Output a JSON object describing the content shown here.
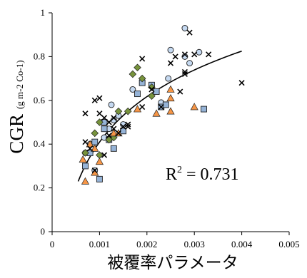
{
  "chart_data": {
    "type": "scatter",
    "title": "",
    "xlabel": "被覆率パラメータ",
    "ylabel_main": "CGR",
    "ylabel_unit": "(g m-2 Co-1)",
    "xlim": [
      0,
      0.005
    ],
    "ylim": [
      0,
      1
    ],
    "xticks": [
      0,
      0.001,
      0.002,
      0.003,
      0.004,
      0.005
    ],
    "xtick_labels": [
      "0",
      "0.001",
      "0.002",
      "0.003",
      "0.004",
      "0.005"
    ],
    "yticks": [
      0,
      0.2,
      0.4,
      0.6,
      0.8,
      1
    ],
    "ytick_labels": [
      "0",
      "0.2",
      "0.4",
      "0.6",
      "0.8",
      "1"
    ],
    "grid": false,
    "annotation": "R2 = 0.731",
    "annotation_parts": {
      "prefix": "R",
      "sup": "2",
      "suffix": " = 0.731"
    },
    "trendline": {
      "type": "log",
      "x_from": 0.00055,
      "x_to": 0.004,
      "y_at_start": 0.23,
      "y_at_end": 0.825
    },
    "colors": {
      "circle": "#c5d9f1",
      "square": "#95b3d7",
      "diamond": "#77933c",
      "triangle": "#f79646",
      "stroke": "#1f1f1f"
    },
    "series": [
      {
        "marker": "circle",
        "points": [
          [
            0.0007,
            0.36
          ],
          [
            0.0008,
            0.4
          ],
          [
            0.0011,
            0.43
          ],
          [
            0.0012,
            0.47
          ],
          [
            0.00125,
            0.58
          ],
          [
            0.0014,
            0.53
          ],
          [
            0.0015,
            0.49
          ],
          [
            0.0017,
            0.65
          ],
          [
            0.0023,
            0.59
          ],
          [
            0.00245,
            0.7
          ],
          [
            0.0025,
            0.83
          ],
          [
            0.0028,
            0.93
          ],
          [
            0.0029,
            0.77
          ],
          [
            0.0028,
            0.8
          ],
          [
            0.0031,
            0.82
          ],
          [
            0.0009,
            0.28
          ],
          [
            0.0013,
            0.51
          ]
        ]
      },
      {
        "marker": "square",
        "points": [
          [
            0.0007,
            0.3
          ],
          [
            0.0008,
            0.36
          ],
          [
            0.0009,
            0.41
          ],
          [
            0.001,
            0.24
          ],
          [
            0.0011,
            0.47
          ],
          [
            0.0012,
            0.42
          ],
          [
            0.0013,
            0.38
          ],
          [
            0.0015,
            0.46
          ],
          [
            0.0018,
            0.63
          ],
          [
            0.0019,
            0.68
          ],
          [
            0.0021,
            0.67
          ],
          [
            0.0022,
            0.64
          ],
          [
            0.0023,
            0.57
          ],
          [
            0.0024,
            0.58
          ],
          [
            0.0032,
            0.56
          ],
          [
            0.0011,
            0.5
          ]
        ]
      },
      {
        "marker": "diamond",
        "points": [
          [
            0.0007,
            0.36
          ],
          [
            0.0009,
            0.45
          ],
          [
            0.001,
            0.35
          ],
          [
            0.001,
            0.5
          ],
          [
            0.0012,
            0.42
          ],
          [
            0.0014,
            0.55
          ],
          [
            0.0016,
            0.55
          ],
          [
            0.0017,
            0.72
          ],
          [
            0.0018,
            0.75
          ],
          [
            0.0019,
            0.7
          ],
          [
            0.0021,
            0.62
          ],
          [
            0.0021,
            0.66
          ],
          [
            0.0013,
            0.43
          ]
        ]
      },
      {
        "marker": "triangle",
        "points": [
          [
            0.0007,
            0.23
          ],
          [
            0.00065,
            0.33
          ],
          [
            0.0008,
            0.4
          ],
          [
            0.0009,
            0.38
          ],
          [
            0.001,
            0.32
          ],
          [
            0.0013,
            0.45
          ],
          [
            0.0014,
            0.45
          ],
          [
            0.0018,
            0.56
          ],
          [
            0.0022,
            0.54
          ],
          [
            0.0025,
            0.55
          ],
          [
            0.0025,
            0.61
          ],
          [
            0.0025,
            0.65
          ],
          [
            0.003,
            0.57
          ],
          [
            0.0009,
            0.27
          ]
        ]
      },
      {
        "marker": "cross",
        "points": [
          [
            0.0007,
            0.54
          ],
          [
            0.0007,
            0.41
          ],
          [
            0.0008,
            0.38
          ],
          [
            0.0009,
            0.6
          ],
          [
            0.001,
            0.61
          ],
          [
            0.001,
            0.54
          ],
          [
            0.0011,
            0.52
          ],
          [
            0.0012,
            0.5
          ],
          [
            0.0013,
            0.47
          ],
          [
            0.0014,
            0.45
          ],
          [
            0.0015,
            0.48
          ],
          [
            0.0016,
            0.49
          ],
          [
            0.0019,
            0.79
          ],
          [
            0.0021,
            0.65
          ],
          [
            0.0023,
            0.57
          ],
          [
            0.0025,
            0.77
          ],
          [
            0.0026,
            0.8
          ],
          [
            0.0028,
            0.81
          ],
          [
            0.0028,
            0.73
          ],
          [
            0.0029,
            0.91
          ],
          [
            0.003,
            0.81
          ],
          [
            0.0033,
            0.81
          ],
          [
            0.004,
            0.68
          ],
          [
            0.0028,
            0.72
          ],
          [
            0.0009,
            0.28
          ],
          [
            0.0011,
            0.35
          ],
          [
            0.0012,
            0.44
          ],
          [
            0.0013,
            0.52
          ],
          [
            0.0016,
            0.48
          ],
          [
            0.0019,
            0.57
          ],
          [
            0.0027,
            0.64
          ]
        ]
      }
    ]
  }
}
